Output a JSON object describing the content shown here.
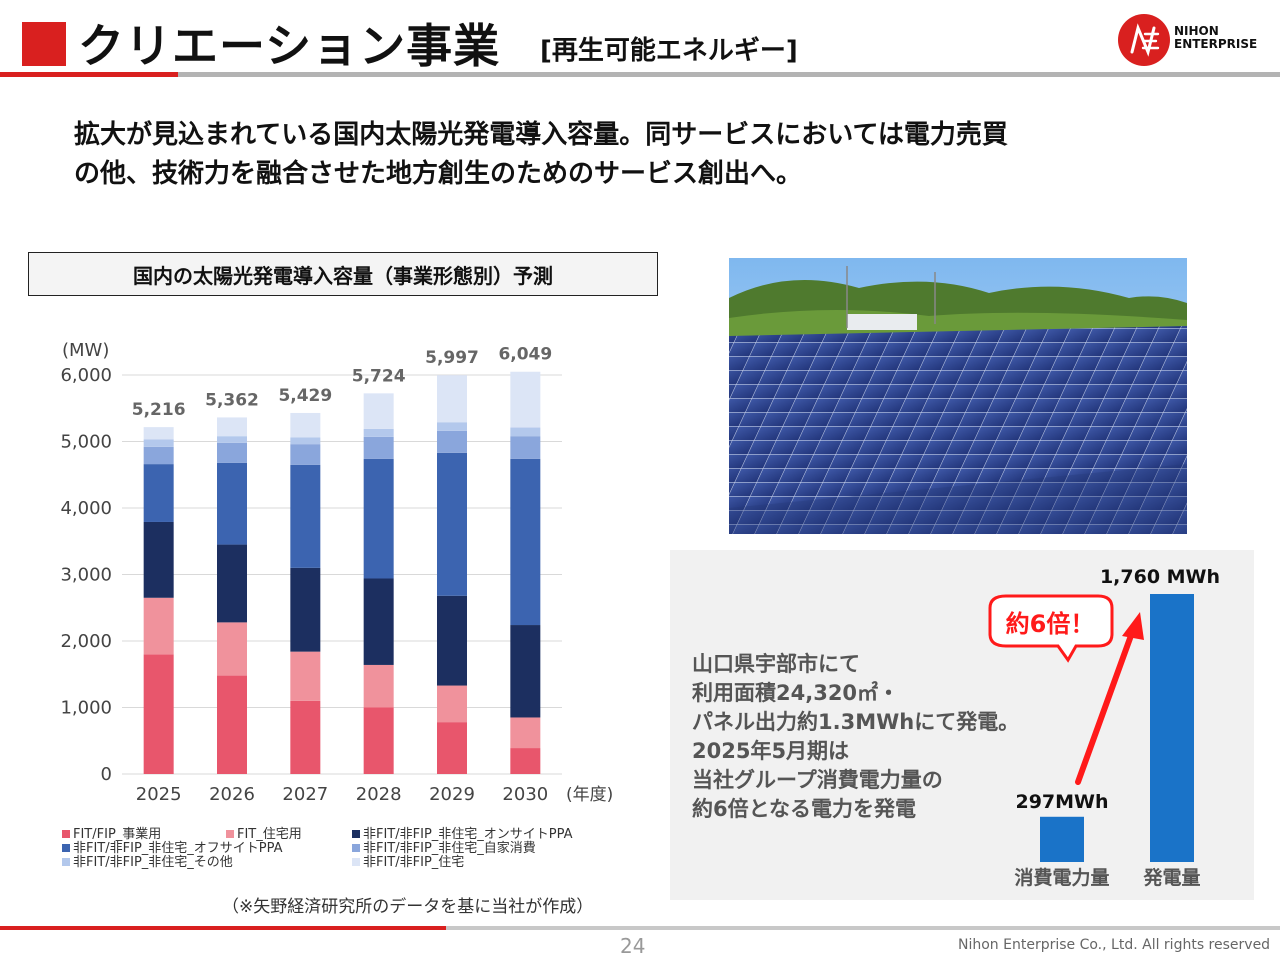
{
  "header": {
    "title": "クリエーション事業",
    "subtitle": "[再生可能エネルギー]",
    "logo_line1": "NIHON",
    "logo_line2": "ENTERPRISE"
  },
  "lead": {
    "line1": "拡大が見込まれている国内太陽光発電導入容量。同サービスにおいては電力売買",
    "line2": "の他、技術力を融合させた地方創生のためのサービス創出へ。"
  },
  "chart_box_title": "国内の太陽光発電導入容量（事業形態別）予測",
  "source_note": "（※矢野経済研究所のデータを基に当社が作成）",
  "chart_data": [
    {
      "type": "bar",
      "stacked": true,
      "title": "",
      "unit_label": "(MW)",
      "xlabel": "(年度)",
      "categories": [
        "2025",
        "2026",
        "2027",
        "2028",
        "2029",
        "2030"
      ],
      "totals": [
        "5,216",
        "5,362",
        "5,429",
        "5,724",
        "5,997",
        "6,049"
      ],
      "ylim": [
        0,
        6000
      ],
      "yticks": [
        "0",
        "1,000",
        "2,000",
        "3,000",
        "4,000",
        "5,000",
        "6,000"
      ],
      "series": [
        {
          "name": "FIT/FIP_事業用",
          "color": "#e8566c",
          "values": [
            1800,
            1480,
            1100,
            1000,
            780,
            390
          ]
        },
        {
          "name": "FIT_住宅用",
          "color": "#f0929c",
          "values": [
            850,
            800,
            740,
            640,
            550,
            460
          ]
        },
        {
          "name": "非FIT/非FIP_非住宅_オンサイトPPA",
          "color": "#1c2f60",
          "values": [
            1140,
            1170,
            1260,
            1300,
            1350,
            1390
          ]
        },
        {
          "name": "非FIT/非FIP_非住宅_オフサイトPPA",
          "color": "#3c64b0",
          "values": [
            870,
            1230,
            1550,
            1800,
            2150,
            2500
          ]
        },
        {
          "name": "非FIT/非FIP_非住宅_自家消費",
          "color": "#8aa6dc",
          "values": [
            260,
            300,
            310,
            330,
            330,
            340
          ]
        },
        {
          "name": "非FIT/非FIP_非住宅_その他",
          "color": "#b3c8ec",
          "values": [
            110,
            100,
            100,
            120,
            130,
            130
          ]
        },
        {
          "name": "非FIT/非FIP_住宅",
          "color": "#dce5f6",
          "values": [
            186,
            282,
            369,
            534,
            707,
            839
          ]
        }
      ]
    },
    {
      "type": "bar",
      "title": "",
      "categories": [
        "消費電力量",
        "発電量"
      ],
      "values": [
        297,
        1760
      ],
      "value_labels": [
        "297MWh",
        "1,760 MWh"
      ],
      "ylim": [
        0,
        1760
      ],
      "callout": "約6倍！",
      "color": "#1a73c8",
      "arrow_color": "#ff1a1a"
    }
  ],
  "panel": {
    "lines": [
      "山口県宇部市にて",
      "利用面積24,320㎡・",
      "パネル出力約1.3MWhにて発電。",
      "2025年5月期は",
      "当社グループ消費電力量の",
      "約6倍となる電力を発電"
    ]
  },
  "footer": {
    "page": "24",
    "copyright": "Nihon Enterprise Co., Ltd. All rights reserved"
  },
  "colors": {
    "accent": "#d9201f",
    "bar_blue": "#1a73c8",
    "callout_red": "#ff1a1a"
  }
}
